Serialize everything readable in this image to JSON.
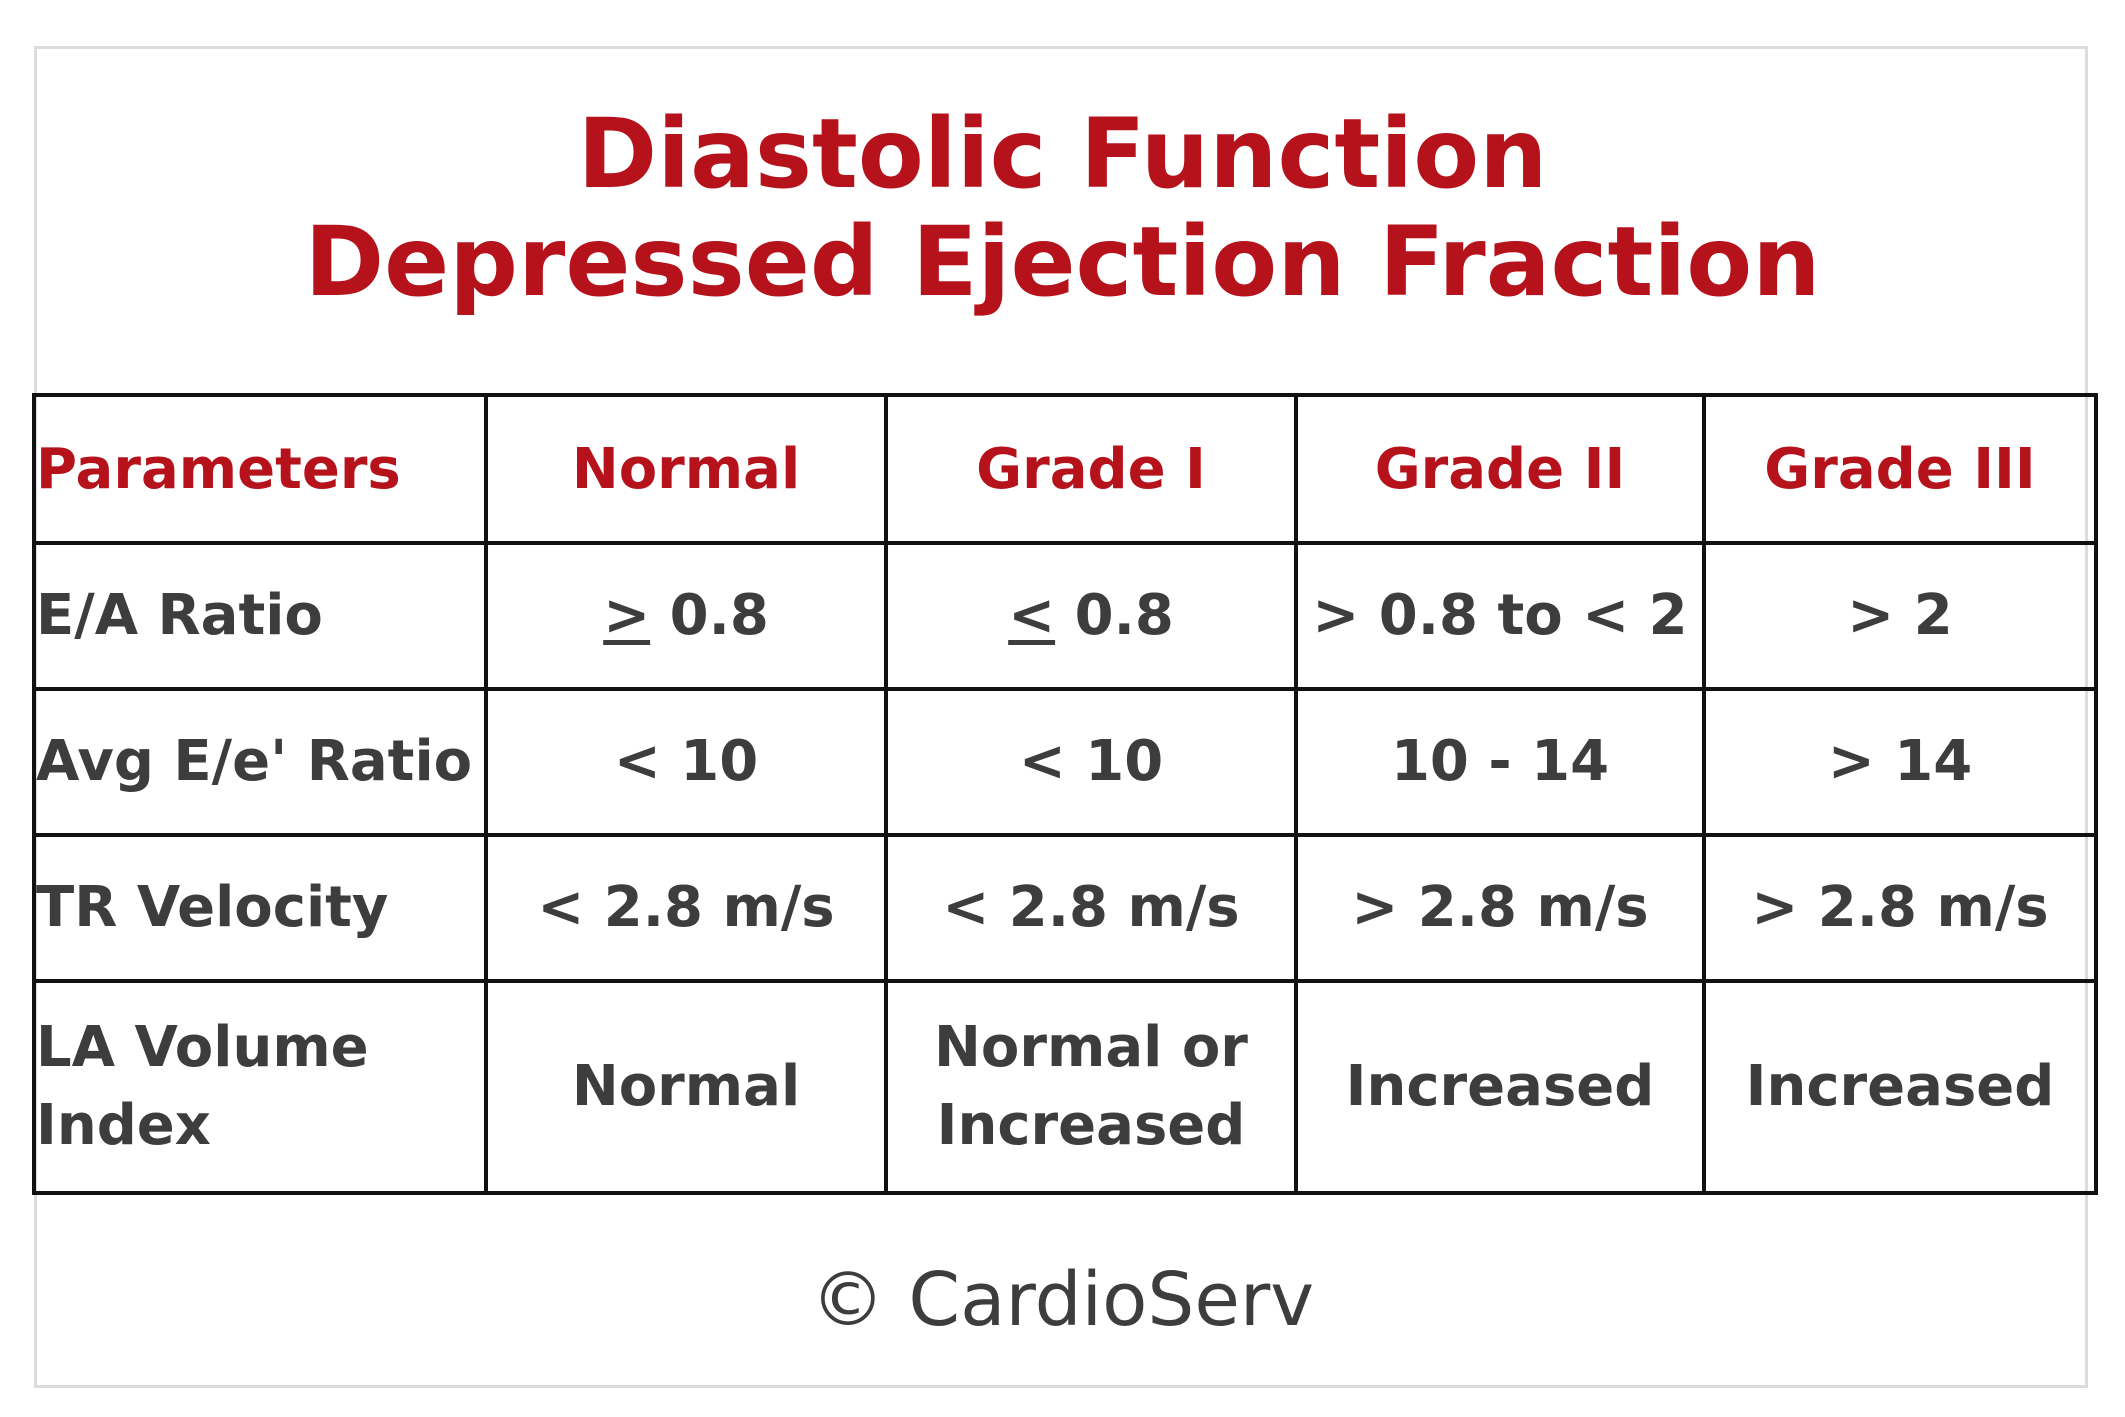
{
  "title": {
    "line1": "Diastolic Function",
    "line2": "Depressed Ejection Fraction"
  },
  "table": {
    "headers": [
      "Parameters",
      "Normal",
      "Grade I",
      "Grade II",
      "Grade III"
    ],
    "rows": [
      {
        "param": "E/A Ratio",
        "normal_sym": ">",
        "normal_val": " 0.8",
        "grade1_sym": "<",
        "grade1_val": " 0.8",
        "grade2": "> 0.8 to < 2",
        "grade3": "> 2"
      },
      {
        "param": "Avg E/e' Ratio",
        "normal": "< 10",
        "grade1": "< 10",
        "grade2": "10 - 14",
        "grade3": "> 14"
      },
      {
        "param": "TR Velocity",
        "normal": "< 2.8 m/s",
        "grade1": "< 2.8 m/s",
        "grade2": "> 2.8 m/s",
        "grade3": "> 2.8 m/s"
      },
      {
        "param_line1": "LA Volume",
        "param_line2": "Index",
        "normal": "Normal",
        "grade1_line1": "Normal or",
        "grade1_line2": "Increased",
        "grade2": "Increased",
        "grade3": "Increased"
      }
    ]
  },
  "footer": {
    "copyright": "© CardioServ"
  },
  "colors": {
    "accent_red": "#b5121b",
    "text_gray": "#3d3d3d",
    "border": "#111111",
    "frame": "#dcdcdc"
  }
}
